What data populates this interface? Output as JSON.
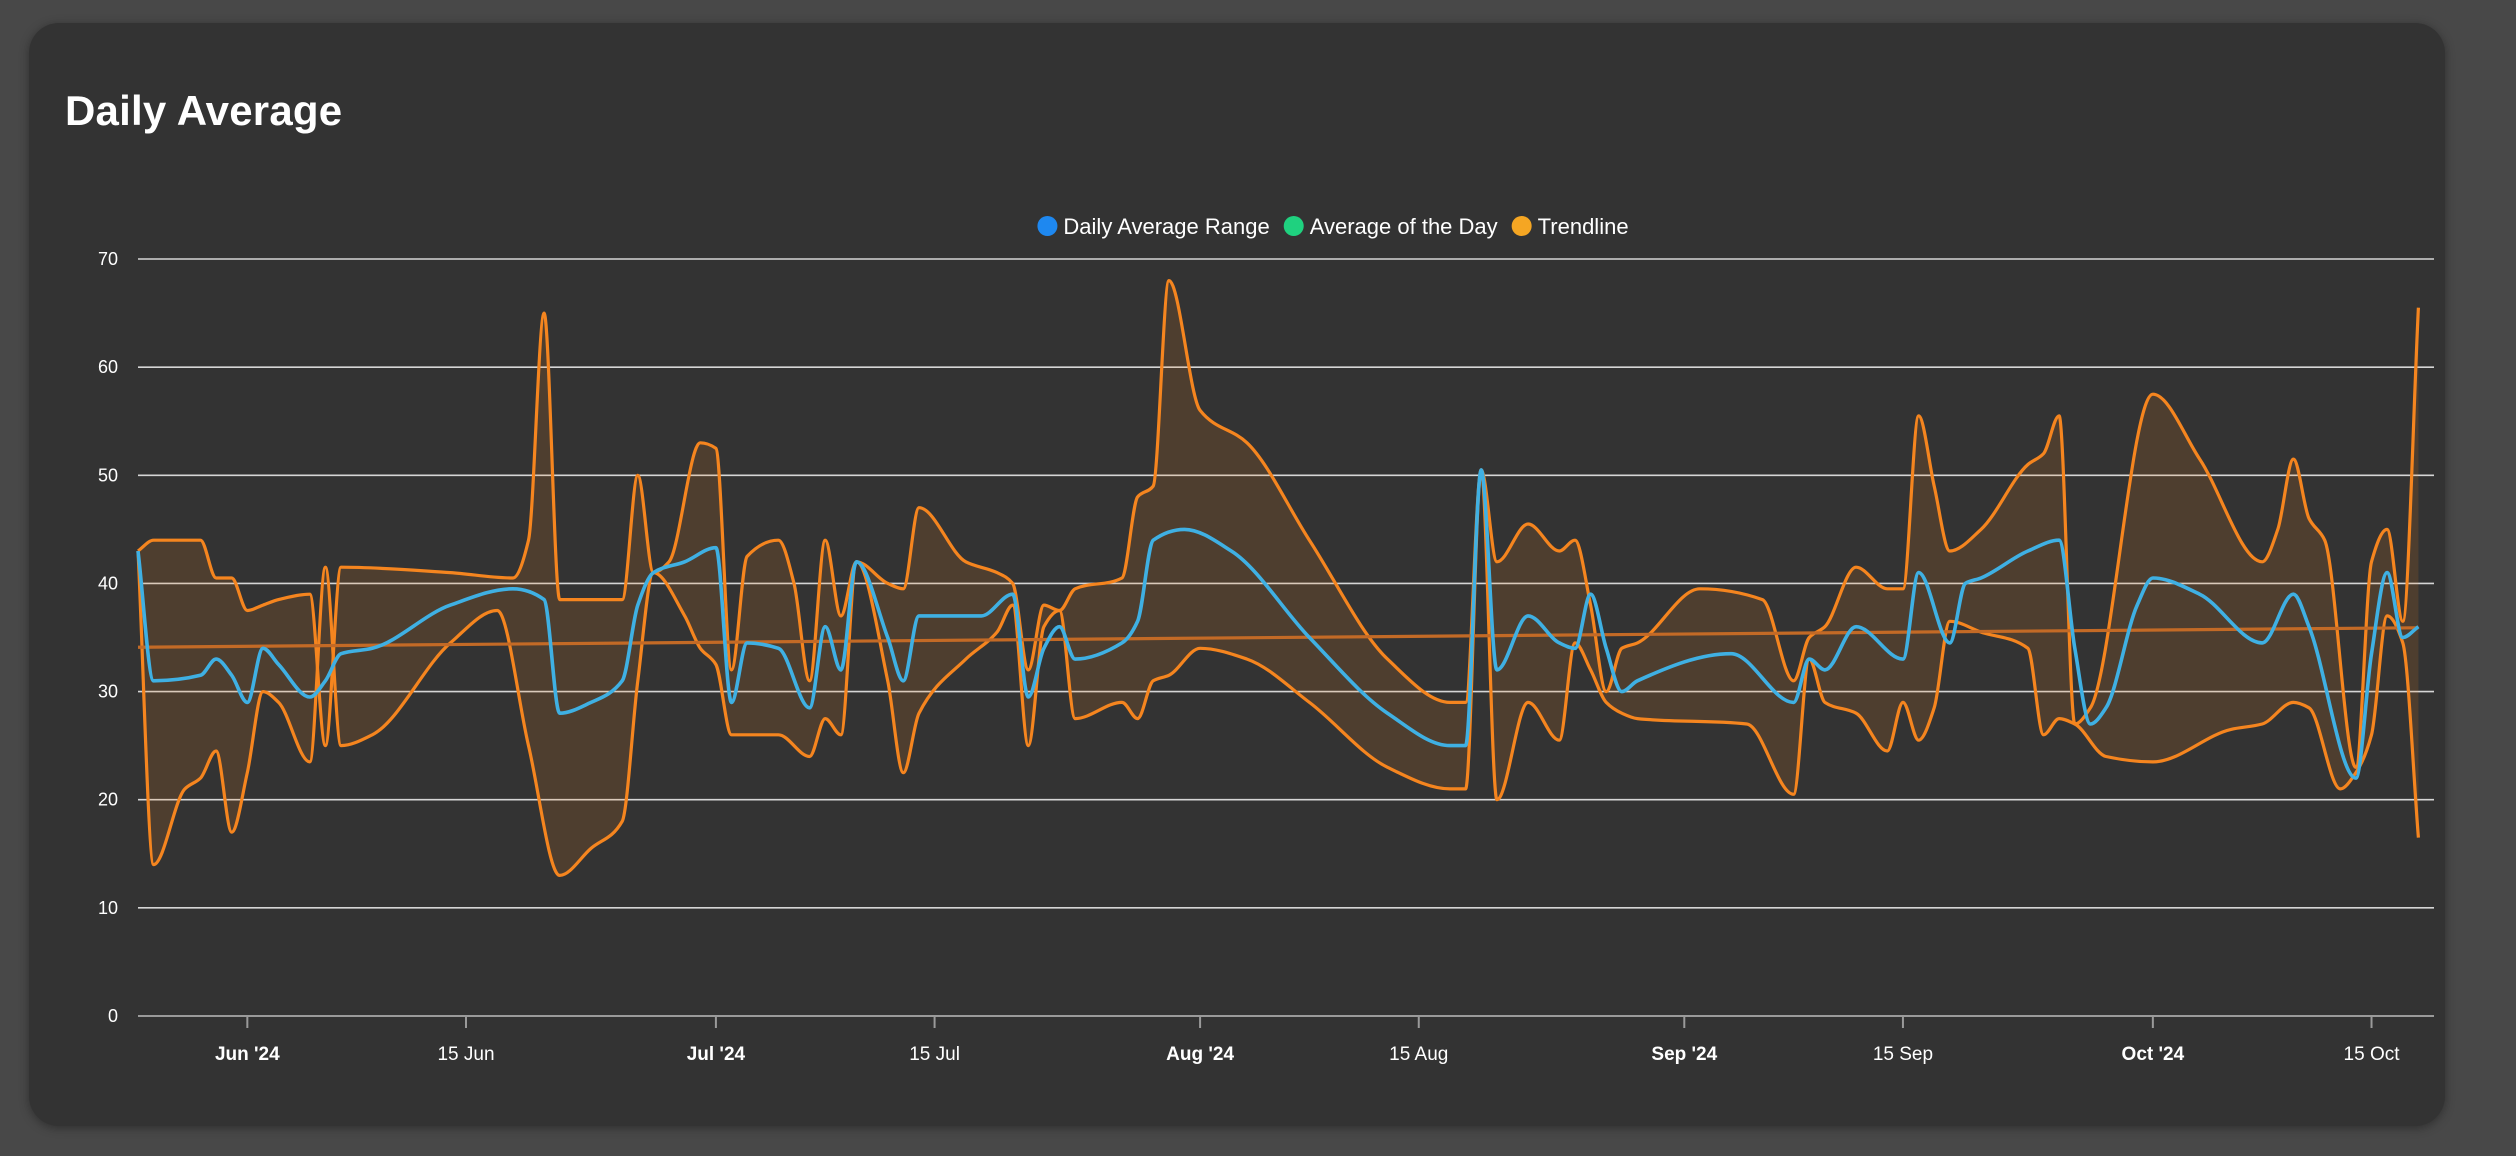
{
  "title": "Daily Average",
  "colors": {
    "card": "#333333",
    "range_line": "#f5851f",
    "range_fill": "rgba(245,133,31,0.14)",
    "average_line": "#3fb0e3",
    "trendline": "#c36a26",
    "grid": "#d6d6d6"
  },
  "chart_data": {
    "type": "area",
    "title": "Daily Average",
    "xlabel": "",
    "ylabel": "",
    "ylim": [
      0,
      70
    ],
    "yticks": [
      0,
      10,
      20,
      30,
      40,
      50,
      60,
      70
    ],
    "xlim": [
      "2024-05-25",
      "2024-10-19"
    ],
    "grid": true,
    "legend_position": "top-center",
    "legend": [
      {
        "label": "Daily Average Range",
        "color": "#1e88f0",
        "icon": "dot-icon"
      },
      {
        "label": "Average of the Day",
        "color": "#1fd17f",
        "icon": "dot-icon"
      },
      {
        "label": "Trendline",
        "color": "#f5a623",
        "icon": "dot-icon"
      }
    ],
    "x_ticks": [
      {
        "date": "2024-06-01",
        "label": "Jun '24",
        "bold": true
      },
      {
        "date": "2024-06-15",
        "label": "15 Jun",
        "bold": false
      },
      {
        "date": "2024-07-01",
        "label": "Jul '24",
        "bold": true
      },
      {
        "date": "2024-07-15",
        "label": "15 Jul",
        "bold": false
      },
      {
        "date": "2024-08-01",
        "label": "Aug '24",
        "bold": true
      },
      {
        "date": "2024-08-15",
        "label": "15 Aug",
        "bold": false
      },
      {
        "date": "2024-09-01",
        "label": "Sep '24",
        "bold": true
      },
      {
        "date": "2024-09-15",
        "label": "15 Sep",
        "bold": false
      },
      {
        "date": "2024-10-01",
        "label": "Oct '24",
        "bold": true
      },
      {
        "date": "2024-10-15",
        "label": "15 Oct",
        "bold": false
      }
    ],
    "series": [
      {
        "name": "Average of the Day",
        "points": [
          [
            "2024-05-25",
            43
          ],
          [
            "2024-05-26",
            31
          ],
          [
            "2024-05-29",
            31.5
          ],
          [
            "2024-05-30",
            33
          ],
          [
            "2024-05-31",
            31.5
          ],
          [
            "2024-06-01",
            29
          ],
          [
            "2024-06-02",
            34
          ],
          [
            "2024-06-03",
            32.5
          ],
          [
            "2024-06-05",
            29.5
          ],
          [
            "2024-06-06",
            31
          ],
          [
            "2024-06-07",
            33.5
          ],
          [
            "2024-06-09",
            34
          ],
          [
            "2024-06-14",
            38
          ],
          [
            "2024-06-18",
            39.5
          ],
          [
            "2024-06-20",
            38.5
          ],
          [
            "2024-06-21",
            28
          ],
          [
            "2024-06-23",
            29
          ],
          [
            "2024-06-25",
            31
          ],
          [
            "2024-06-26",
            38
          ],
          [
            "2024-06-27",
            41
          ],
          [
            "2024-06-29",
            42
          ],
          [
            "2024-07-01",
            43.3
          ],
          [
            "2024-07-02",
            29
          ],
          [
            "2024-07-03",
            34.5
          ],
          [
            "2024-07-05",
            34
          ],
          [
            "2024-07-07",
            28.5
          ],
          [
            "2024-07-08",
            36
          ],
          [
            "2024-07-09",
            32
          ],
          [
            "2024-07-10",
            42
          ],
          [
            "2024-07-12",
            35
          ],
          [
            "2024-07-13",
            31
          ],
          [
            "2024-07-14",
            37
          ],
          [
            "2024-07-18",
            37
          ],
          [
            "2024-07-20",
            39
          ],
          [
            "2024-07-21",
            29.5
          ],
          [
            "2024-07-22",
            34
          ],
          [
            "2024-07-23",
            36
          ],
          [
            "2024-07-24",
            33
          ],
          [
            "2024-07-27",
            34.5
          ],
          [
            "2024-07-28",
            36.5
          ],
          [
            "2024-07-29",
            44
          ],
          [
            "2024-07-31",
            45
          ],
          [
            "2024-08-03",
            43
          ],
          [
            "2024-08-08",
            35
          ],
          [
            "2024-08-13",
            28
          ],
          [
            "2024-08-17",
            25
          ],
          [
            "2024-08-18",
            25
          ],
          [
            "2024-08-19",
            50.5
          ],
          [
            "2024-08-20",
            32
          ],
          [
            "2024-08-22",
            37
          ],
          [
            "2024-08-24",
            34.5
          ],
          [
            "2024-08-25",
            34
          ],
          [
            "2024-08-26",
            39
          ],
          [
            "2024-08-27",
            34
          ],
          [
            "2024-08-28",
            30
          ],
          [
            "2024-08-29",
            31
          ],
          [
            "2024-09-04",
            33.5
          ],
          [
            "2024-09-08",
            29
          ],
          [
            "2024-09-09",
            33
          ],
          [
            "2024-09-10",
            32
          ],
          [
            "2024-09-12",
            36
          ],
          [
            "2024-09-15",
            33
          ],
          [
            "2024-09-16",
            41
          ],
          [
            "2024-09-18",
            34.5
          ],
          [
            "2024-09-19",
            40
          ],
          [
            "2024-09-20",
            40.5
          ],
          [
            "2024-09-23",
            43
          ],
          [
            "2024-09-25",
            44
          ],
          [
            "2024-09-26",
            34
          ],
          [
            "2024-09-27",
            27
          ],
          [
            "2024-09-28",
            28.5
          ],
          [
            "2024-09-30",
            38
          ],
          [
            "2024-10-01",
            40.5
          ],
          [
            "2024-10-04",
            39
          ],
          [
            "2024-10-08",
            34.5
          ],
          [
            "2024-10-10",
            39
          ],
          [
            "2024-10-11",
            36
          ],
          [
            "2024-10-14",
            22
          ],
          [
            "2024-10-15",
            33.5
          ],
          [
            "2024-10-16",
            41
          ],
          [
            "2024-10-17",
            35
          ],
          [
            "2024-10-18",
            36
          ]
        ]
      },
      {
        "name": "Daily Average Range",
        "upper": [
          [
            "2024-05-25",
            43
          ],
          [
            "2024-05-26",
            44
          ],
          [
            "2024-05-29",
            44
          ],
          [
            "2024-05-30",
            40.5
          ],
          [
            "2024-05-31",
            40.5
          ],
          [
            "2024-06-01",
            37.5
          ],
          [
            "2024-06-02",
            38
          ],
          [
            "2024-06-03",
            38.5
          ],
          [
            "2024-06-05",
            39
          ],
          [
            "2024-06-06",
            25
          ],
          [
            "2024-06-07",
            41.5
          ],
          [
            "2024-06-14",
            41
          ],
          [
            "2024-06-18",
            40.5
          ],
          [
            "2024-06-19",
            44
          ],
          [
            "2024-06-20",
            65
          ],
          [
            "2024-06-21",
            38.5
          ],
          [
            "2024-06-25",
            38.5
          ],
          [
            "2024-06-26",
            50
          ],
          [
            "2024-06-27",
            41
          ],
          [
            "2024-06-28",
            42
          ],
          [
            "2024-06-30",
            53
          ],
          [
            "2024-07-01",
            52.5
          ],
          [
            "2024-07-02",
            32
          ],
          [
            "2024-07-03",
            42.5
          ],
          [
            "2024-07-05",
            44
          ],
          [
            "2024-07-06",
            40
          ],
          [
            "2024-07-07",
            31
          ],
          [
            "2024-07-08",
            44
          ],
          [
            "2024-07-09",
            37
          ],
          [
            "2024-07-10",
            42
          ],
          [
            "2024-07-12",
            40
          ],
          [
            "2024-07-13",
            39.5
          ],
          [
            "2024-07-14",
            47
          ],
          [
            "2024-07-17",
            42
          ],
          [
            "2024-07-19",
            41
          ],
          [
            "2024-07-20",
            40
          ],
          [
            "2024-07-21",
            32
          ],
          [
            "2024-07-22",
            38
          ],
          [
            "2024-07-23",
            37.5
          ],
          [
            "2024-07-24",
            39.5
          ],
          [
            "2024-07-27",
            40.5
          ],
          [
            "2024-07-28",
            48
          ],
          [
            "2024-07-29",
            49
          ],
          [
            "2024-07-30",
            68
          ],
          [
            "2024-08-01",
            56
          ],
          [
            "2024-08-04",
            53
          ],
          [
            "2024-08-08",
            44
          ],
          [
            "2024-08-13",
            33
          ],
          [
            "2024-08-17",
            29
          ],
          [
            "2024-08-18",
            29
          ],
          [
            "2024-08-19",
            50.5
          ],
          [
            "2024-08-20",
            42
          ],
          [
            "2024-08-22",
            45.5
          ],
          [
            "2024-08-24",
            43
          ],
          [
            "2024-08-25",
            44
          ],
          [
            "2024-08-26",
            38
          ],
          [
            "2024-08-27",
            30
          ],
          [
            "2024-08-28",
            34
          ],
          [
            "2024-08-29",
            34.5
          ],
          [
            "2024-09-02",
            39.5
          ],
          [
            "2024-09-06",
            38.5
          ],
          [
            "2024-09-08",
            31
          ],
          [
            "2024-09-09",
            35
          ],
          [
            "2024-09-10",
            36
          ],
          [
            "2024-09-12",
            41.5
          ],
          [
            "2024-09-14",
            39.5
          ],
          [
            "2024-09-15",
            39.5
          ],
          [
            "2024-09-16",
            55.5
          ],
          [
            "2024-09-17",
            49
          ],
          [
            "2024-09-18",
            43
          ],
          [
            "2024-09-20",
            45
          ],
          [
            "2024-09-23",
            51
          ],
          [
            "2024-09-24",
            52
          ],
          [
            "2024-09-25",
            55.5
          ],
          [
            "2024-09-26",
            27
          ],
          [
            "2024-09-27",
            28.5
          ],
          [
            "2024-10-01",
            57.5
          ],
          [
            "2024-10-04",
            51.5
          ],
          [
            "2024-10-08",
            42
          ],
          [
            "2024-10-09",
            45
          ],
          [
            "2024-10-10",
            51.5
          ],
          [
            "2024-10-11",
            46
          ],
          [
            "2024-10-12",
            44
          ],
          [
            "2024-10-14",
            23
          ],
          [
            "2024-10-15",
            42
          ],
          [
            "2024-10-16",
            45
          ],
          [
            "2024-10-17",
            36.5
          ],
          [
            "2024-10-18",
            65.5
          ]
        ],
        "lower": [
          [
            "2024-05-25",
            43
          ],
          [
            "2024-05-26",
            14
          ],
          [
            "2024-05-28",
            21
          ],
          [
            "2024-05-29",
            22
          ],
          [
            "2024-05-30",
            24.5
          ],
          [
            "2024-05-31",
            17
          ],
          [
            "2024-06-01",
            22.5
          ],
          [
            "2024-06-02",
            30
          ],
          [
            "2024-06-03",
            29
          ],
          [
            "2024-06-05",
            23.5
          ],
          [
            "2024-06-06",
            41.5
          ],
          [
            "2024-06-07",
            25
          ],
          [
            "2024-06-09",
            26
          ],
          [
            "2024-06-14",
            34.5
          ],
          [
            "2024-06-17",
            37.5
          ],
          [
            "2024-06-19",
            25
          ],
          [
            "2024-06-21",
            13
          ],
          [
            "2024-06-23",
            15.5
          ],
          [
            "2024-06-25",
            18
          ],
          [
            "2024-06-26",
            31
          ],
          [
            "2024-06-27",
            41
          ],
          [
            "2024-06-29",
            37
          ],
          [
            "2024-06-30",
            34
          ],
          [
            "2024-07-01",
            32.5
          ],
          [
            "2024-07-02",
            26
          ],
          [
            "2024-07-05",
            26
          ],
          [
            "2024-07-07",
            24
          ],
          [
            "2024-07-08",
            27.5
          ],
          [
            "2024-07-09",
            26
          ],
          [
            "2024-07-10",
            42
          ],
          [
            "2024-07-12",
            31
          ],
          [
            "2024-07-13",
            22.5
          ],
          [
            "2024-07-14",
            28
          ],
          [
            "2024-07-17",
            33
          ],
          [
            "2024-07-19",
            35.5
          ],
          [
            "2024-07-20",
            38
          ],
          [
            "2024-07-21",
            25
          ],
          [
            "2024-07-22",
            36
          ],
          [
            "2024-07-23",
            37.5
          ],
          [
            "2024-07-24",
            27.5
          ],
          [
            "2024-07-27",
            29
          ],
          [
            "2024-07-28",
            27.5
          ],
          [
            "2024-07-29",
            31
          ],
          [
            "2024-07-30",
            31.5
          ],
          [
            "2024-08-01",
            34
          ],
          [
            "2024-08-04",
            33
          ],
          [
            "2024-08-08",
            29
          ],
          [
            "2024-08-13",
            23
          ],
          [
            "2024-08-17",
            21
          ],
          [
            "2024-08-18",
            21
          ],
          [
            "2024-08-19",
            50.5
          ],
          [
            "2024-08-20",
            20
          ],
          [
            "2024-08-22",
            29
          ],
          [
            "2024-08-24",
            25.5
          ],
          [
            "2024-08-25",
            34.5
          ],
          [
            "2024-08-26",
            32
          ],
          [
            "2024-08-27",
            29
          ],
          [
            "2024-08-28",
            28
          ],
          [
            "2024-08-29",
            27.5
          ],
          [
            "2024-09-05",
            27
          ],
          [
            "2024-09-08",
            20.5
          ],
          [
            "2024-09-09",
            33
          ],
          [
            "2024-09-10",
            29
          ],
          [
            "2024-09-12",
            28
          ],
          [
            "2024-09-14",
            24.5
          ],
          [
            "2024-09-15",
            29
          ],
          [
            "2024-09-16",
            25.5
          ],
          [
            "2024-09-17",
            28.5
          ],
          [
            "2024-09-18",
            36.5
          ],
          [
            "2024-09-20",
            35.5
          ],
          [
            "2024-09-23",
            34
          ],
          [
            "2024-09-24",
            26
          ],
          [
            "2024-09-25",
            27.5
          ],
          [
            "2024-09-26",
            27
          ],
          [
            "2024-09-28",
            24
          ],
          [
            "2024-10-01",
            23.5
          ],
          [
            "2024-10-06",
            26.5
          ],
          [
            "2024-10-08",
            27
          ],
          [
            "2024-10-10",
            29
          ],
          [
            "2024-10-11",
            28.5
          ],
          [
            "2024-10-13",
            21
          ],
          [
            "2024-10-14",
            22.5
          ],
          [
            "2024-10-15",
            26
          ],
          [
            "2024-10-16",
            37
          ],
          [
            "2024-10-17",
            34.5
          ],
          [
            "2024-10-18",
            16.5
          ]
        ]
      },
      {
        "name": "Trendline",
        "points": [
          [
            "2024-05-25",
            34.1
          ],
          [
            "2024-10-18",
            35.9
          ]
        ]
      }
    ]
  }
}
